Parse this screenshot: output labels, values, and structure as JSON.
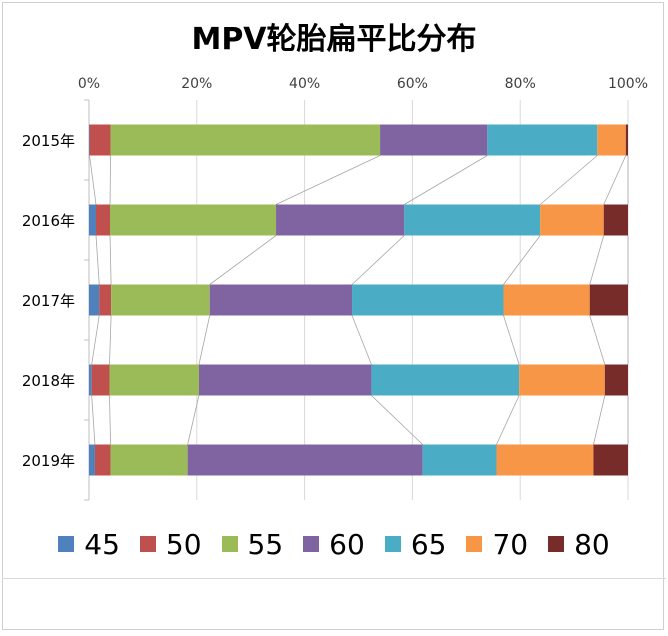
{
  "chart_data": {
    "type": "bar",
    "orientation": "horizontal",
    "stacked": "percent",
    "title": "MPV轮胎扁平比分布",
    "categories": [
      "2015年",
      "2016年",
      "2017年",
      "2018年",
      "2019年"
    ],
    "xlim": [
      0,
      100
    ],
    "x_ticks": [
      "0%",
      "20%",
      "40%",
      "60%",
      "80%",
      "100%"
    ],
    "grid": true,
    "series_lines": true,
    "legend_position": "bottom",
    "series": [
      {
        "name": "45",
        "color": "#4F81BD",
        "values": [
          0.1,
          1.3,
          1.9,
          0.5,
          1.1
        ]
      },
      {
        "name": "50",
        "color": "#C0504D",
        "values": [
          3.9,
          2.6,
          2.2,
          3.3,
          2.9
        ]
      },
      {
        "name": "55",
        "color": "#9BBB59",
        "values": [
          50.0,
          30.8,
          18.3,
          16.6,
          14.3
        ]
      },
      {
        "name": "60",
        "color": "#8064A2",
        "values": [
          19.9,
          23.8,
          26.4,
          32.0,
          43.6
        ]
      },
      {
        "name": "65",
        "color": "#4BACC6",
        "values": [
          20.4,
          25.2,
          28.1,
          27.4,
          13.7
        ]
      },
      {
        "name": "70",
        "color": "#F79646",
        "values": [
          5.3,
          11.8,
          16.0,
          15.9,
          18.0
        ]
      },
      {
        "name": "80",
        "color": "#772C2A",
        "values": [
          0.4,
          4.5,
          7.1,
          4.3,
          6.4
        ]
      }
    ]
  }
}
